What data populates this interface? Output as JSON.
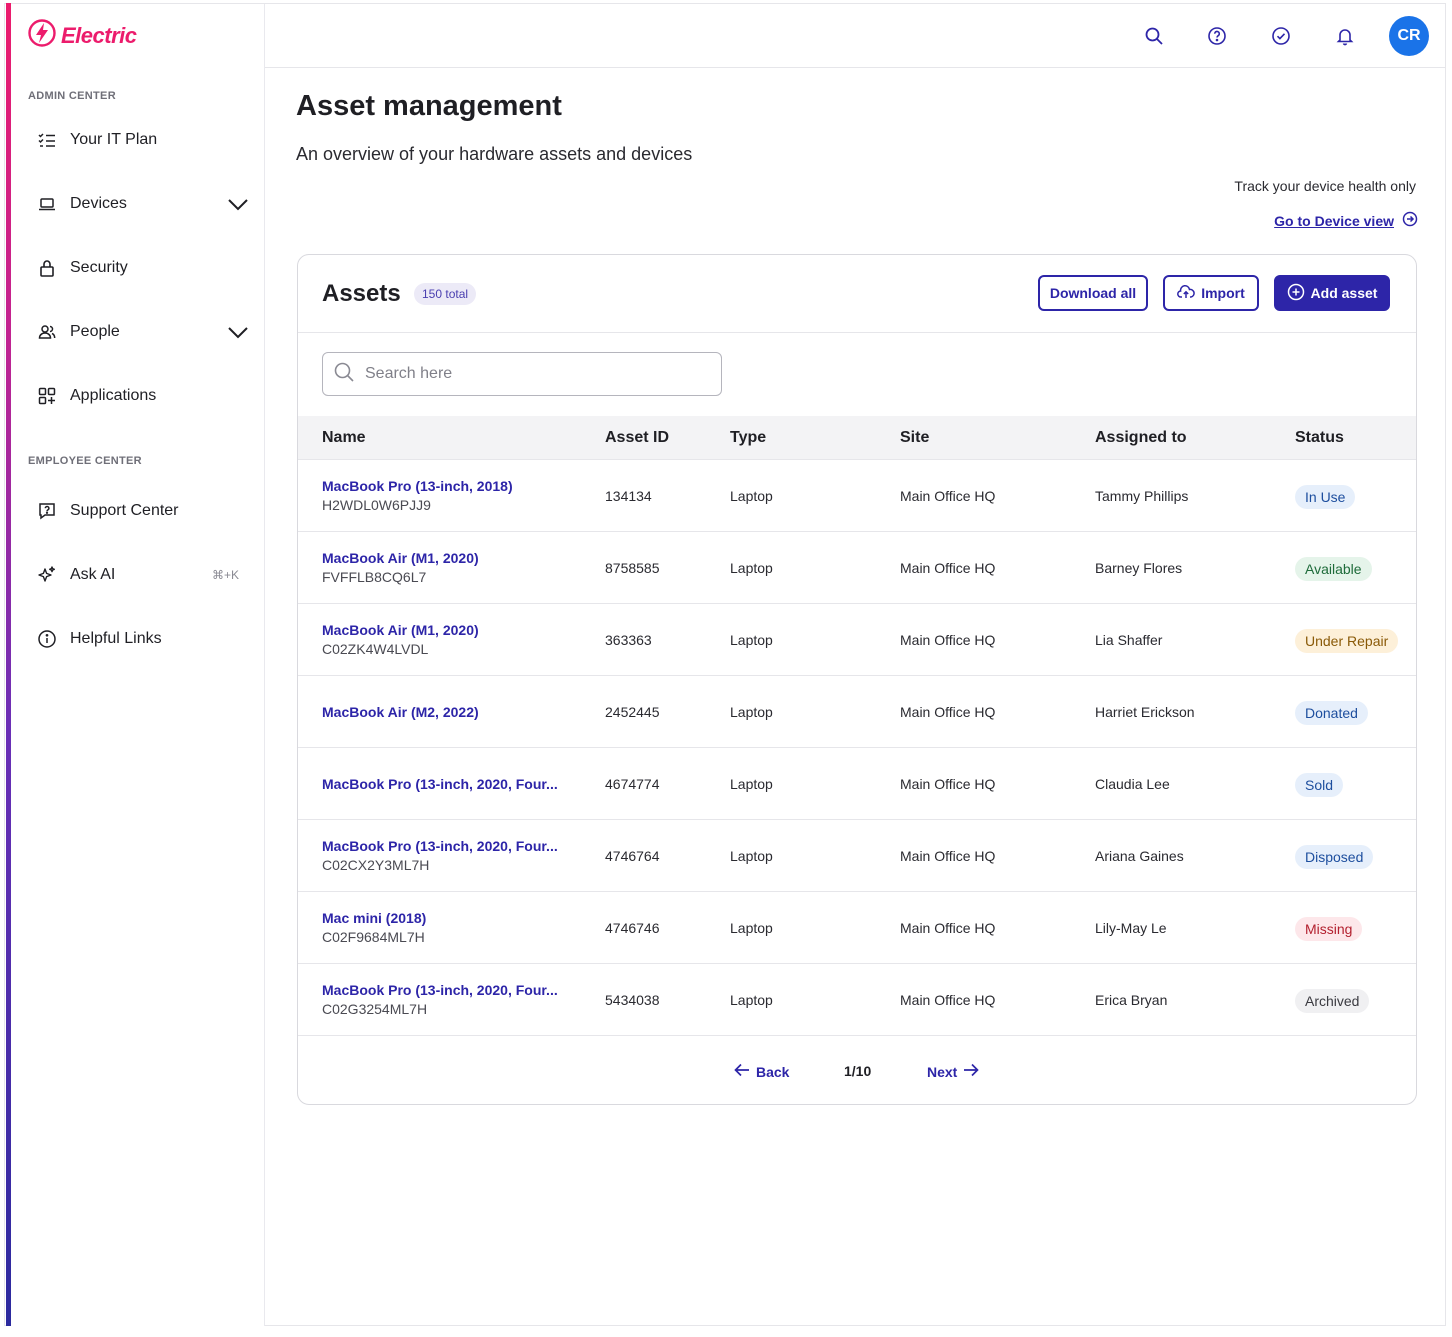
{
  "brand": {
    "name": "Electric",
    "color": "#ec1c6c"
  },
  "sidebar": {
    "admin_label": "ADMIN CENTER",
    "employee_label": "EMPLOYEE CENTER",
    "items": [
      {
        "label": "Your IT Plan",
        "icon": "checklist-icon"
      },
      {
        "label": "Devices",
        "icon": "laptop-icon",
        "expandable": true
      },
      {
        "label": "Security",
        "icon": "lock-icon"
      },
      {
        "label": "People",
        "icon": "people-icon",
        "expandable": true
      },
      {
        "label": "Applications",
        "icon": "apps-grid-icon"
      },
      {
        "label": "Support Center",
        "icon": "help-chat-icon"
      },
      {
        "label": "Ask AI",
        "icon": "sparkle-icon",
        "shortcut": "⌘+K"
      },
      {
        "label": "Helpful Links",
        "icon": "info-icon"
      }
    ]
  },
  "topbar": {
    "icons": [
      "search-icon",
      "help-icon",
      "check-circle-icon",
      "bell-icon"
    ],
    "avatar_initials": "CR",
    "avatar_color": "#1a73e8"
  },
  "page": {
    "title": "Asset management",
    "subtitle": "An overview of your hardware assets and devices",
    "track_text": "Track your device health only",
    "device_link": "Go to Device view"
  },
  "assets": {
    "title": "Assets",
    "count_badge": "150 total",
    "download_label": "Download all",
    "import_label": "Import",
    "add_label": "Add asset",
    "search_placeholder": "Search here",
    "columns": [
      "Name",
      "Asset ID",
      "Type",
      "Site",
      "Assigned to",
      "Status"
    ],
    "rows": [
      {
        "name": "MacBook Pro (13-inch, 2018)",
        "serial": "H2WDL0W6PJJ9",
        "asset_id": "134134",
        "type": "Laptop",
        "site": "Main Office HQ",
        "assigned": "Tammy Phillips",
        "status": "In Use"
      },
      {
        "name": "MacBook Air (M1, 2020)",
        "serial": "FVFFLB8CQ6L7",
        "asset_id": "8758585",
        "type": "Laptop",
        "site": "Main Office HQ",
        "assigned": "Barney Flores",
        "status": "Available"
      },
      {
        "name": "MacBook Air (M1, 2020)",
        "serial": "C02ZK4W4LVDL",
        "asset_id": "363363",
        "type": "Laptop",
        "site": "Main Office HQ",
        "assigned": "Lia Shaffer",
        "status": "Under Repair"
      },
      {
        "name": "MacBook Air (M2, 2022)",
        "serial": "",
        "asset_id": "2452445",
        "type": "Laptop",
        "site": "Main Office HQ",
        "assigned": "Harriet Erickson",
        "status": "Donated"
      },
      {
        "name": "MacBook Pro (13-inch, 2020, Four...",
        "serial": "",
        "asset_id": "4674774",
        "type": "Laptop",
        "site": "Main Office HQ",
        "assigned": "Claudia Lee",
        "status": "Sold"
      },
      {
        "name": "MacBook Pro (13-inch, 2020, Four...",
        "serial": "C02CX2Y3ML7H",
        "asset_id": "4746764",
        "type": "Laptop",
        "site": "Main Office HQ",
        "assigned": "Ariana Gaines",
        "status": "Disposed"
      },
      {
        "name": "Mac mini (2018)",
        "serial": "C02F9684ML7H",
        "asset_id": "4746746",
        "type": "Laptop",
        "site": "Main Office HQ",
        "assigned": "Lily-May Le",
        "status": "Missing"
      },
      {
        "name": "MacBook Pro (13-inch, 2020, Four...",
        "serial": "C02G3254ML7H",
        "asset_id": "5434038",
        "type": "Laptop",
        "site": "Main Office HQ",
        "assigned": "Erica Bryan",
        "status": "Archived"
      }
    ],
    "status_colors": {
      "In Use": {
        "bg": "#e6effb",
        "fg": "#1d4e9e"
      },
      "Available": {
        "bg": "#e5f4ea",
        "fg": "#1e6b3a"
      },
      "Under Repair": {
        "bg": "#fdf0d9",
        "fg": "#8a5a08"
      },
      "Donated": {
        "bg": "#e6effb",
        "fg": "#1d4e9e"
      },
      "Sold": {
        "bg": "#e6effb",
        "fg": "#1d4e9e"
      },
      "Disposed": {
        "bg": "#e6effb",
        "fg": "#1d4e9e"
      },
      "Missing": {
        "bg": "#fde7ea",
        "fg": "#b3202f"
      },
      "Archived": {
        "bg": "#f0f0f2",
        "fg": "#3a3a40"
      }
    },
    "pagination": {
      "back": "Back",
      "page": "1/10",
      "next": "Next"
    }
  }
}
